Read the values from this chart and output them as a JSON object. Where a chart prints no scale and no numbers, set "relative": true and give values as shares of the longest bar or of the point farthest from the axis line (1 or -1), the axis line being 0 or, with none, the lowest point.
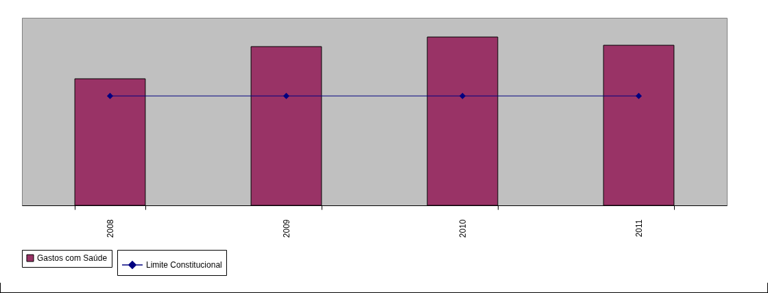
{
  "chart_data": {
    "type": "bar",
    "relative": true,
    "categories": [
      "2008",
      "2009",
      "2010",
      "2011"
    ],
    "series": [
      {
        "name": "Gastos com Saúde",
        "color": "#993366",
        "values": [
          0.752,
          0.943,
          1,
          0.951
        ]
      },
      {
        "name": "Limite Constitucional",
        "type": "line",
        "color": "#000080",
        "marker": "diamond",
        "values": [
          0.65,
          0.65,
          0.65,
          0.65
        ]
      }
    ],
    "legend": "bottom",
    "grid": false
  }
}
